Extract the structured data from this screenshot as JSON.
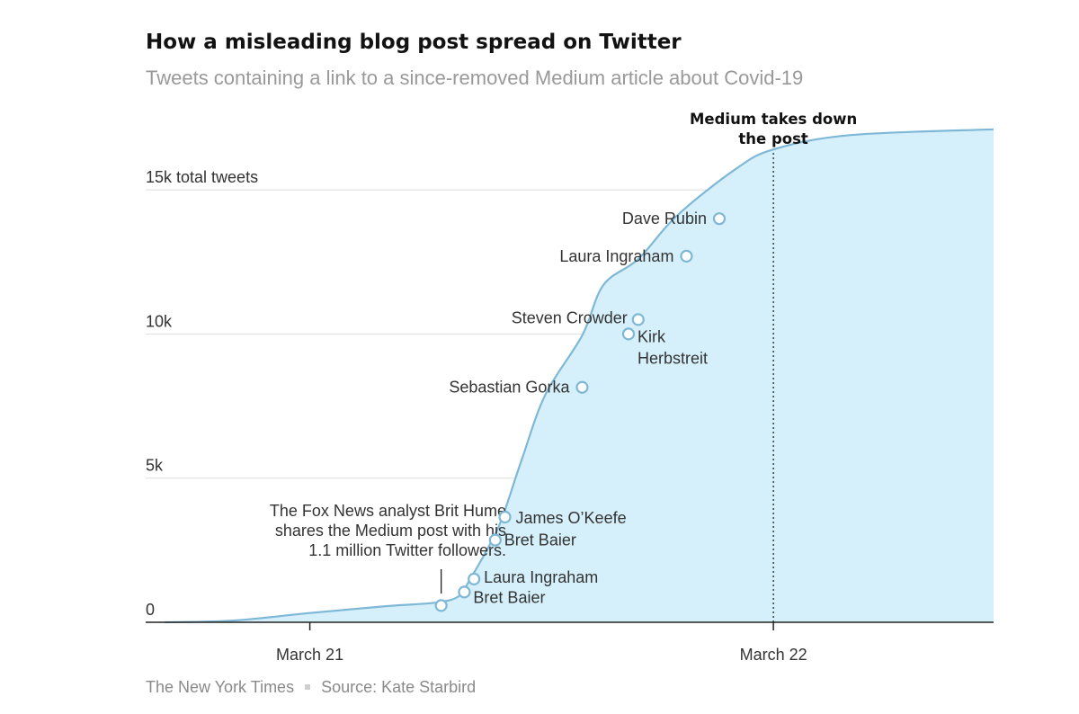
{
  "header": {
    "title": "How a misleading blog post spread on Twitter",
    "subtitle": "Tweets containing a link to a since-removed Medium article about Covid-19"
  },
  "footer": {
    "publisher": "The New York Times",
    "source": "Source: Kate Starbird"
  },
  "colors": {
    "fill": "#d6f0fb",
    "line": "#7fb8d6",
    "gridline": "#dddddd",
    "baseline": "#222222",
    "marker_fill": "#ffffff",
    "text": "#333333",
    "muted": "#8a8a8a"
  },
  "chart_data": {
    "type": "area",
    "x_unit": "hours since the start of March 21",
    "y_unit": "total tweets",
    "ylim": [
      0,
      17000
    ],
    "xlim": [
      -8.5,
      35.4
    ],
    "grid": true,
    "y_ticks": [
      {
        "value": 0,
        "label": "0"
      },
      {
        "value": 5000,
        "label": "5k"
      },
      {
        "value": 10000,
        "label": "10k"
      },
      {
        "value": 15000,
        "label": "15k total tweets"
      }
    ],
    "x_ticks": [
      {
        "value": 0,
        "label": "March 21"
      },
      {
        "value": 24,
        "label": "March 22"
      }
    ],
    "series": [
      {
        "values": [
          {
            "x": -7.5,
            "y": 0
          },
          {
            "x": -4,
            "y": 60
          },
          {
            "x": 0,
            "y": 320
          },
          {
            "x": 4,
            "y": 560
          },
          {
            "x": 6.5,
            "y": 680
          },
          {
            "x": 7.7,
            "y": 900
          },
          {
            "x": 8.3,
            "y": 1500
          },
          {
            "x": 9.4,
            "y": 2800
          },
          {
            "x": 10,
            "y": 3700
          },
          {
            "x": 11,
            "y": 5700
          },
          {
            "x": 12.2,
            "y": 7900
          },
          {
            "x": 14.1,
            "y": 9950
          },
          {
            "x": 15.2,
            "y": 11700
          },
          {
            "x": 17,
            "y": 12600
          },
          {
            "x": 19,
            "y": 14100
          },
          {
            "x": 22,
            "y": 15700
          },
          {
            "x": 24,
            "y": 16400
          },
          {
            "x": 28,
            "y": 16900
          },
          {
            "x": 35.4,
            "y": 17100
          }
        ]
      }
    ],
    "markers": [
      {
        "x": 6.8,
        "y": 580,
        "label": ""
      },
      {
        "x": 8.0,
        "y": 1050,
        "label": "Bret Baier"
      },
      {
        "x": 8.5,
        "y": 1500,
        "label": "Laura Ingraham"
      },
      {
        "x": 9.6,
        "y": 2850,
        "label": "Bret Baier"
      },
      {
        "x": 10.1,
        "y": 3650,
        "label": "James O’Keefe"
      },
      {
        "x": 14.1,
        "y": 8150,
        "label": "Sebastian Gorka"
      },
      {
        "x": 16.5,
        "y": 10000,
        "label": "Kirk Herbstreit"
      },
      {
        "x": 17.0,
        "y": 10500,
        "label": "Steven Crowder"
      },
      {
        "x": 19.5,
        "y": 12700,
        "label": "Laura Ingraham"
      },
      {
        "x": 21.2,
        "y": 14000,
        "label": "Dave Rubin"
      }
    ],
    "annotations": {
      "brit_hume": {
        "lines": [
          "The Fox News analyst Brit Hume",
          "shares the Medium post with his",
          "1.1 million Twitter followers."
        ],
        "x": 6.8
      },
      "takedown": {
        "x": 24,
        "lines": [
          "Medium takes down",
          "the post"
        ]
      }
    }
  }
}
